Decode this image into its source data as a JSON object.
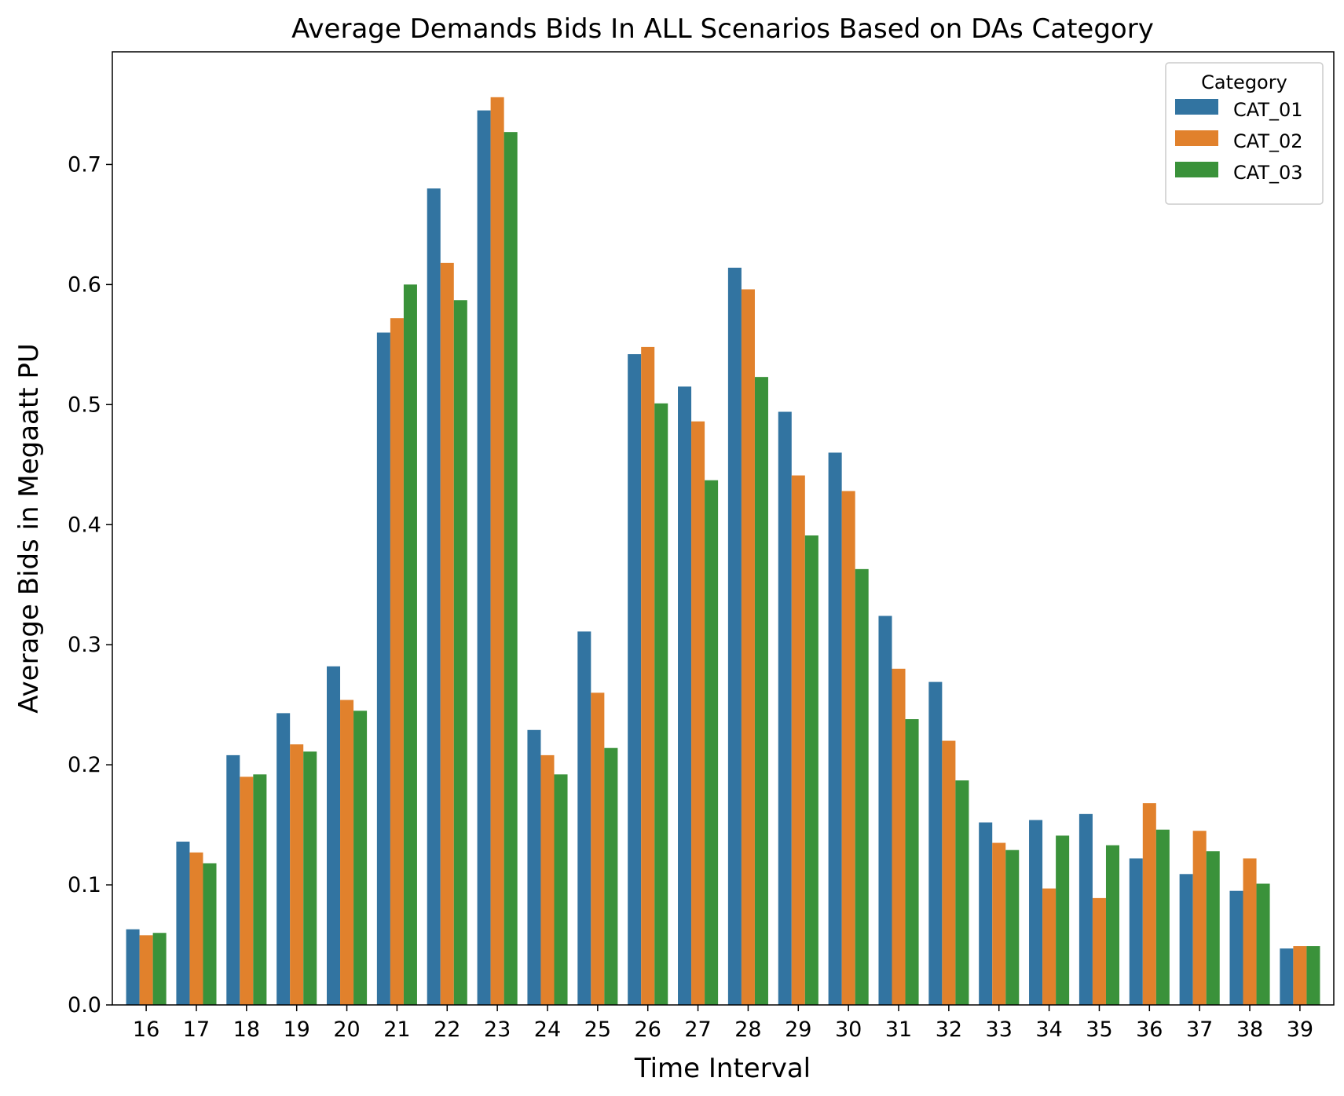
{
  "chart_data": {
    "type": "bar",
    "title": "Average Demands Bids In ALL Scenarios Based on DAs Category",
    "xlabel": "Time Interval",
    "ylabel": "Average Bids in Megaatt PU",
    "categories": [
      "16",
      "17",
      "18",
      "19",
      "20",
      "21",
      "22",
      "23",
      "24",
      "25",
      "26",
      "27",
      "28",
      "29",
      "30",
      "31",
      "32",
      "33",
      "34",
      "35",
      "36",
      "37",
      "38",
      "39"
    ],
    "series": [
      {
        "name": "CAT_01",
        "color": "#3274a1",
        "values": [
          0.063,
          0.136,
          0.208,
          0.243,
          0.282,
          0.56,
          0.68,
          0.745,
          0.229,
          0.311,
          0.542,
          0.515,
          0.614,
          0.494,
          0.46,
          0.324,
          0.269,
          0.152,
          0.154,
          0.159,
          0.122,
          0.109,
          0.095,
          0.047
        ]
      },
      {
        "name": "CAT_02",
        "color": "#e1812c",
        "values": [
          0.058,
          0.127,
          0.19,
          0.217,
          0.254,
          0.572,
          0.618,
          0.756,
          0.208,
          0.26,
          0.548,
          0.486,
          0.596,
          0.441,
          0.428,
          0.28,
          0.22,
          0.135,
          0.097,
          0.089,
          0.168,
          0.145,
          0.122,
          0.049
        ]
      },
      {
        "name": "CAT_03",
        "color": "#3a923a",
        "values": [
          0.06,
          0.118,
          0.192,
          0.211,
          0.245,
          0.6,
          0.587,
          0.727,
          0.192,
          0.214,
          0.501,
          0.437,
          0.523,
          0.391,
          0.363,
          0.238,
          0.187,
          0.129,
          0.141,
          0.133,
          0.146,
          0.128,
          0.101,
          0.049
        ]
      }
    ],
    "yticks": [
      0.0,
      0.1,
      0.2,
      0.3,
      0.4,
      0.5,
      0.6,
      0.7
    ],
    "ylim": [
      0.0,
      0.7938
    ],
    "grid": false,
    "legend": {
      "title": "Category",
      "position": "top-right"
    }
  }
}
